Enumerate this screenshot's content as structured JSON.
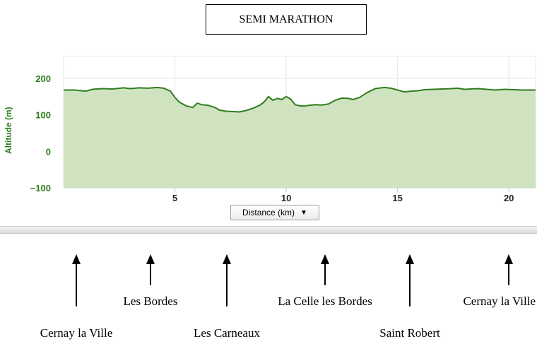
{
  "title": "SEMI MARATHON",
  "distance_selector": {
    "label": "Distance (km)",
    "arrow": "▼"
  },
  "chart_data": {
    "type": "area",
    "title": "",
    "ylabel": "Altitude (m)",
    "xlabel": "",
    "xlim": [
      0,
      21.2
    ],
    "ylim": [
      -100,
      200
    ],
    "y_ticks": [
      -100,
      0,
      100,
      200
    ],
    "x_ticks": [
      5,
      10,
      15,
      20
    ],
    "grid": true,
    "color_fill": "#cfe3c1",
    "color_line": "#2f7d1c",
    "series": [
      {
        "x": [
          0,
          0.5,
          1.0,
          1.3,
          1.7,
          2.2,
          2.7,
          3.0,
          3.4,
          3.8,
          4.2,
          4.5,
          4.8,
          5.0,
          5.2,
          5.5,
          5.8,
          6.0,
          6.2,
          6.5,
          6.8,
          7.0,
          7.3,
          7.6,
          7.9,
          8.2,
          8.5,
          8.8,
          9.0,
          9.2,
          9.4,
          9.6,
          9.8,
          10.0,
          10.2,
          10.4,
          10.6,
          10.8,
          11.0,
          11.3,
          11.6,
          11.9,
          12.2,
          12.5,
          12.8,
          13.0,
          13.3,
          13.6,
          14.0,
          14.4,
          14.7,
          15.0,
          15.3,
          15.6,
          15.9,
          16.2,
          16.6,
          17.0,
          17.4,
          17.7,
          18.0,
          18.3,
          18.6,
          19.0,
          19.4,
          19.8,
          20.2,
          20.6,
          21.0,
          21.2
        ],
        "y": [
          168,
          168,
          165,
          170,
          172,
          171,
          174,
          172,
          174,
          173,
          175,
          173,
          165,
          148,
          135,
          125,
          120,
          132,
          128,
          126,
          120,
          113,
          110,
          109,
          108,
          112,
          118,
          126,
          135,
          150,
          140,
          145,
          142,
          150,
          143,
          128,
          125,
          124,
          126,
          128,
          127,
          130,
          140,
          146,
          145,
          142,
          148,
          160,
          172,
          175,
          173,
          168,
          163,
          165,
          166,
          169,
          170,
          171,
          172,
          173,
          170,
          171,
          172,
          170,
          168,
          170,
          169,
          168,
          168,
          168
        ]
      }
    ]
  },
  "places": [
    {
      "label": "Cernay la Ville",
      "row": "bottom"
    },
    {
      "label": "Les Bordes",
      "row": "top"
    },
    {
      "label": "Les Carneaux",
      "row": "bottom"
    },
    {
      "label": "La Celle les Bordes",
      "row": "top"
    },
    {
      "label": "Saint Robert",
      "row": "bottom"
    },
    {
      "label": "Cernay la Ville",
      "row": "top"
    }
  ]
}
